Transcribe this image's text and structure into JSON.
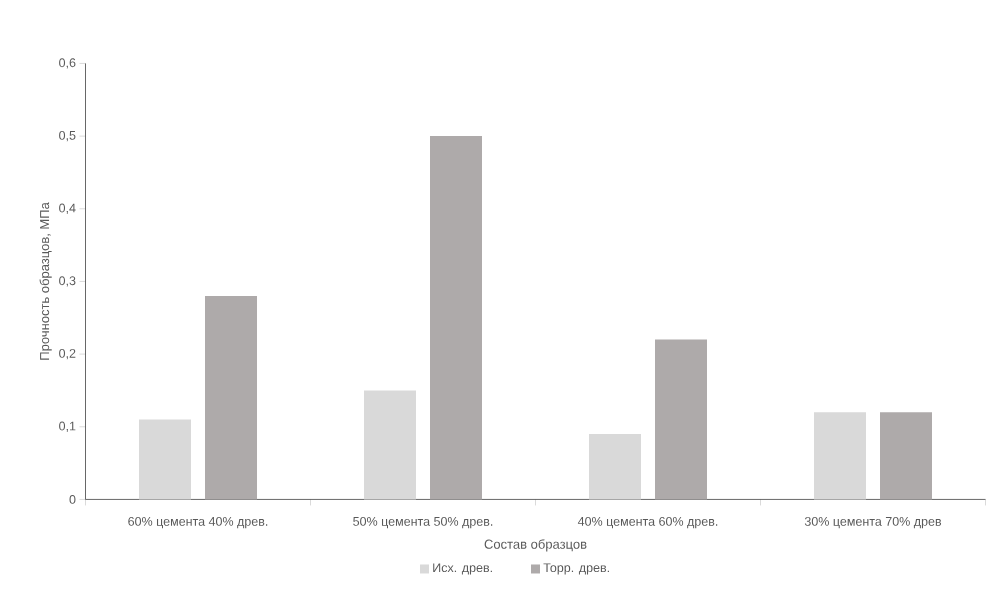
{
  "chart_data": {
    "type": "bar",
    "xlabel": "Состав образцов",
    "ylabel": "Прочность образцов, МПа",
    "categories": [
      "60% цемента 40% древ.",
      "50% цемента 50% древ.",
      "40% цемента 60% древ.",
      "30% цемента 70% древ"
    ],
    "series": [
      {
        "name": "Исх. древ.",
        "color": "#d9d9d9",
        "values": [
          0.11,
          0.15,
          0.09,
          0.12
        ]
      },
      {
        "name": "Торр. древ.",
        "color": "#aeaaaa",
        "values": [
          0.28,
          0.5,
          0.22,
          0.12
        ]
      }
    ],
    "ylim": [
      0,
      0.6
    ],
    "yticks": [
      0,
      {
        "value": 0.1,
        "label": "0,1"
      },
      {
        "value": 0.2,
        "label": "0,2"
      },
      {
        "value": 0.3,
        "label": "0,3"
      },
      {
        "value": 0.4,
        "label": "0,4"
      },
      {
        "value": 0.5,
        "label": "0,5"
      },
      {
        "value": 0.6,
        "label": "0,6"
      }
    ],
    "grid": false,
    "legend": "bottom"
  }
}
